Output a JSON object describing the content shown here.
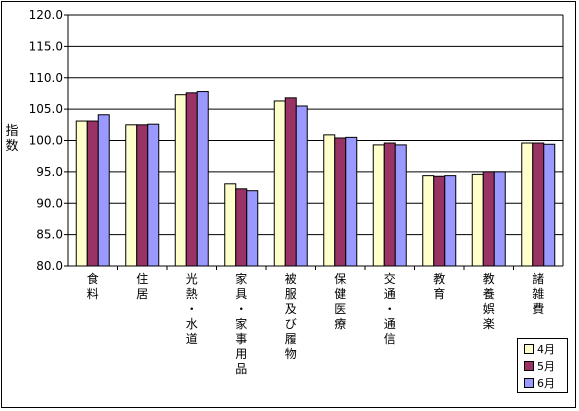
{
  "chart_data": {
    "type": "bar",
    "ylabel": "指数",
    "ylim": [
      80.0,
      120.0
    ],
    "yticks": [
      "80.0",
      "85.0",
      "90.0",
      "95.0",
      "100.0",
      "105.0",
      "110.0",
      "115.0",
      "120.0"
    ],
    "grid": true,
    "legend_position": "bottom-right",
    "categories": [
      "食料",
      "住居",
      "光熱・水道",
      "家具・家事用品",
      "被服及び履物",
      "保健医療",
      "交通・通信",
      "教育",
      "教養娯楽",
      "諸雑費"
    ],
    "series": [
      {
        "name": "4月",
        "color": "#ffffcc",
        "values": [
          103.1,
          102.5,
          107.3,
          93.1,
          106.3,
          100.9,
          99.3,
          94.4,
          94.6,
          99.6
        ]
      },
      {
        "name": "5月",
        "color": "#993366",
        "values": [
          103.1,
          102.5,
          107.6,
          92.3,
          106.8,
          100.4,
          99.6,
          94.3,
          95.0,
          99.6
        ]
      },
      {
        "name": "6月",
        "color": "#9999ff",
        "values": [
          104.1,
          102.6,
          107.8,
          92.0,
          105.5,
          100.5,
          99.3,
          94.4,
          95.0,
          99.4
        ]
      }
    ]
  }
}
